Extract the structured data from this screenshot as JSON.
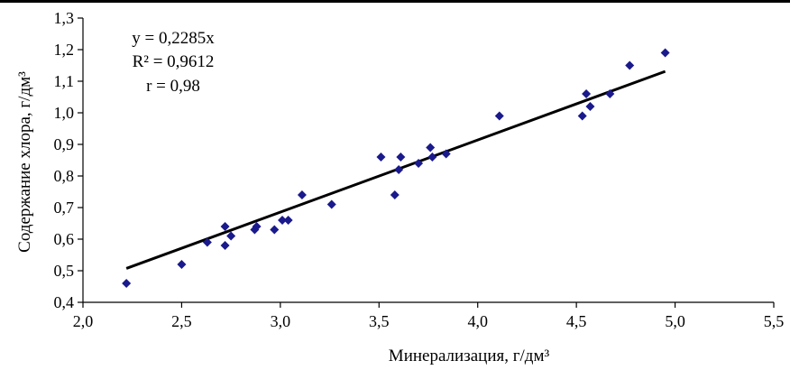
{
  "chart_data": {
    "type": "scatter",
    "xlabel": "Минерализация, г/дм³",
    "ylabel": "Содержание хлора, г/дм³",
    "xlim": [
      2.0,
      5.5
    ],
    "ylim": [
      0.4,
      1.3
    ],
    "x_ticks": [
      "2,0",
      "2,5",
      "3,0",
      "3,5",
      "4,0",
      "4,5",
      "5,0",
      "5,5"
    ],
    "y_ticks": [
      "0,4",
      "0,5",
      "0,6",
      "0,7",
      "0,8",
      "0,9",
      "1,0",
      "1,1",
      "1,2",
      "1,3"
    ],
    "grid": false,
    "legend": "none",
    "marker_color": "#1a1a8c",
    "trendline_color": "#000000",
    "annotations": [
      "y = 0,2285x",
      "R² = 0,9612",
      "r = 0,98"
    ],
    "trendline": {
      "slope": 0.2285,
      "intercept": 0.0,
      "x_range": [
        2.22,
        4.95
      ]
    },
    "points": [
      {
        "x": 2.22,
        "y": 0.46
      },
      {
        "x": 2.5,
        "y": 0.52
      },
      {
        "x": 2.63,
        "y": 0.59
      },
      {
        "x": 2.72,
        "y": 0.64
      },
      {
        "x": 2.72,
        "y": 0.58
      },
      {
        "x": 2.75,
        "y": 0.61
      },
      {
        "x": 2.87,
        "y": 0.63
      },
      {
        "x": 2.88,
        "y": 0.64
      },
      {
        "x": 2.97,
        "y": 0.63
      },
      {
        "x": 3.01,
        "y": 0.66
      },
      {
        "x": 3.04,
        "y": 0.66
      },
      {
        "x": 3.11,
        "y": 0.74
      },
      {
        "x": 3.26,
        "y": 0.71
      },
      {
        "x": 3.51,
        "y": 0.86
      },
      {
        "x": 3.58,
        "y": 0.74
      },
      {
        "x": 3.6,
        "y": 0.82
      },
      {
        "x": 3.61,
        "y": 0.86
      },
      {
        "x": 3.7,
        "y": 0.84
      },
      {
        "x": 3.76,
        "y": 0.89
      },
      {
        "x": 3.77,
        "y": 0.86
      },
      {
        "x": 3.84,
        "y": 0.87
      },
      {
        "x": 4.11,
        "y": 0.99
      },
      {
        "x": 4.53,
        "y": 0.99
      },
      {
        "x": 4.55,
        "y": 1.06
      },
      {
        "x": 4.57,
        "y": 1.02
      },
      {
        "x": 4.67,
        "y": 1.06
      },
      {
        "x": 4.77,
        "y": 1.15
      },
      {
        "x": 4.95,
        "y": 1.19
      }
    ]
  }
}
